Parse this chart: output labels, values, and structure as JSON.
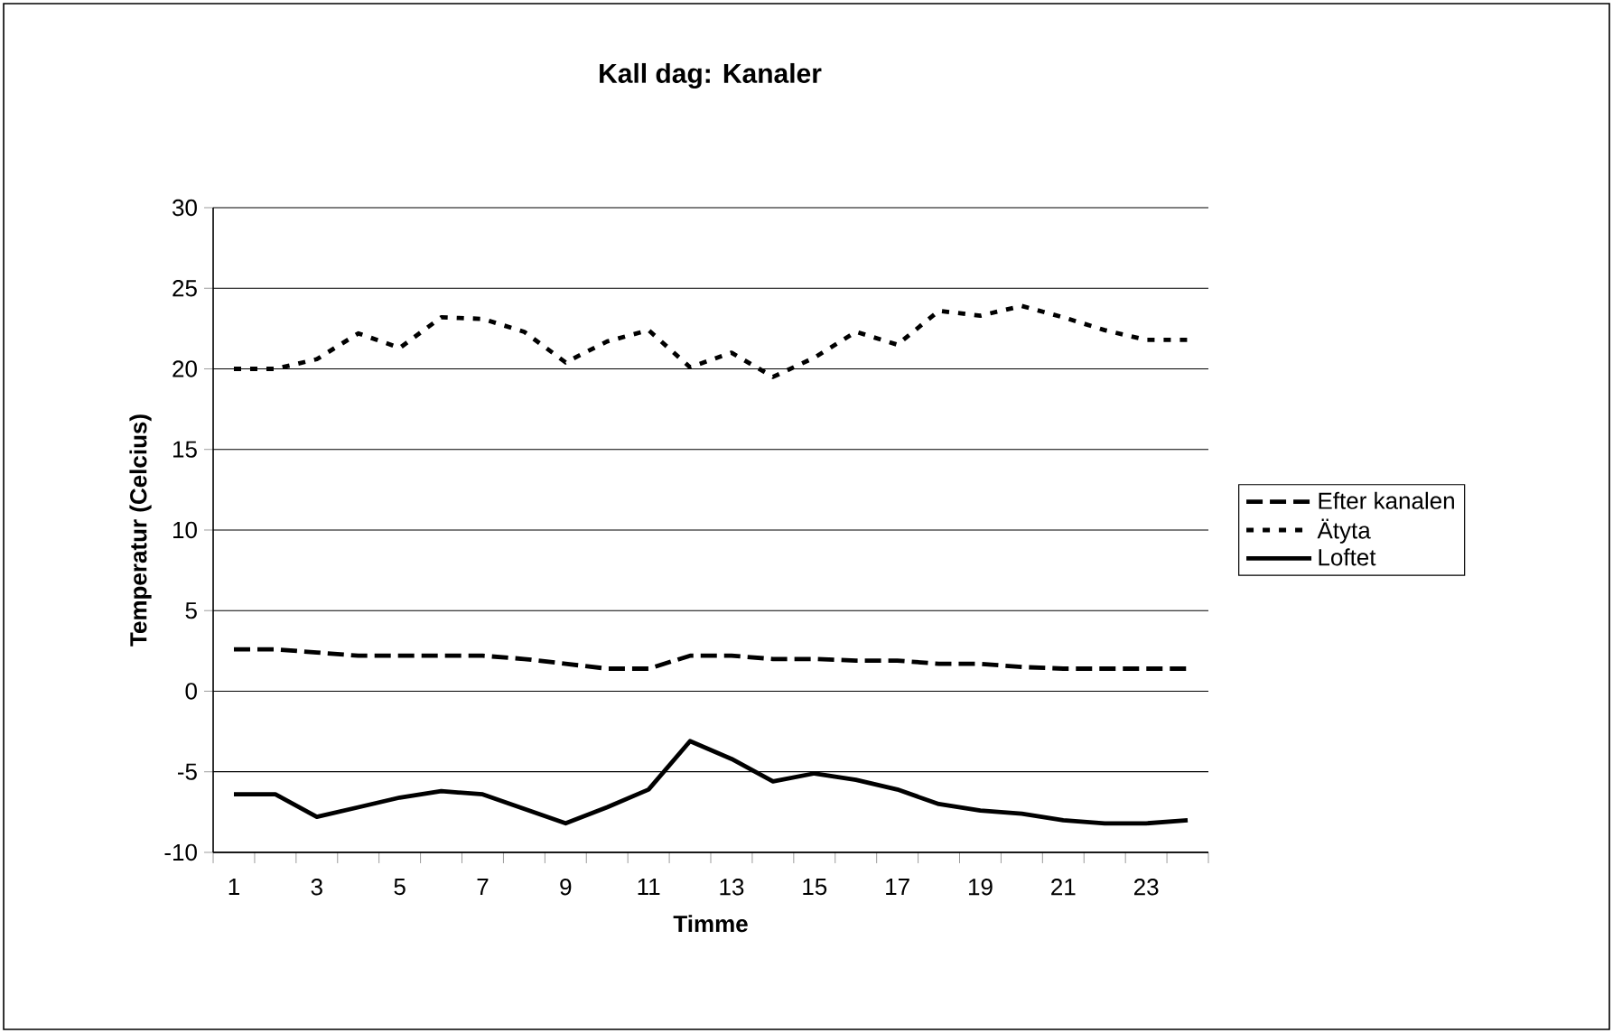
{
  "chart_data": {
    "type": "line",
    "title": "Kall dag: Kanaler",
    "xlabel": "Timme",
    "ylabel": "Temperatur (Celcius)",
    "categories": [
      "1",
      null,
      "3",
      null,
      "5",
      null,
      "7",
      null,
      "9",
      null,
      "11",
      null,
      "13",
      null,
      "15",
      null,
      "17",
      null,
      "19",
      null,
      "21",
      null,
      "23",
      null
    ],
    "ylim": [
      -10,
      30
    ],
    "yticks": [
      -10,
      -5,
      0,
      5,
      10,
      15,
      20,
      25,
      30
    ],
    "grid": "y",
    "legend": "right",
    "series": [
      {
        "name": "Efter kanalen",
        "color": "#000000",
        "line_style": "dashed",
        "values": [
          2.6,
          2.6,
          2.4,
          2.2,
          2.2,
          2.2,
          2.2,
          2.0,
          1.7,
          1.4,
          1.4,
          2.2,
          2.2,
          2.0,
          2.0,
          1.9,
          1.9,
          1.7,
          1.7,
          1.5,
          1.4,
          1.4,
          1.4,
          1.4
        ]
      },
      {
        "name": "Ätyta",
        "color": "#000000",
        "line_style": "dotted",
        "values": [
          20.0,
          20.0,
          20.6,
          22.2,
          21.3,
          23.2,
          23.1,
          22.3,
          20.4,
          21.7,
          22.4,
          20.1,
          21.0,
          19.5,
          20.7,
          22.3,
          21.5,
          23.6,
          23.3,
          23.9,
          23.2,
          22.4,
          21.8,
          21.8
        ]
      },
      {
        "name": "Loftet",
        "color": "#000000",
        "line_style": "solid",
        "values": [
          -6.4,
          -6.4,
          -7.8,
          -7.2,
          -6.6,
          -6.2,
          -6.4,
          -7.3,
          -8.2,
          -7.2,
          -6.1,
          -3.1,
          -4.2,
          -5.6,
          -5.1,
          -5.5,
          -6.1,
          -7.0,
          -7.4,
          -7.6,
          -8.0,
          -8.2,
          -8.2,
          -8.0
        ]
      }
    ]
  }
}
